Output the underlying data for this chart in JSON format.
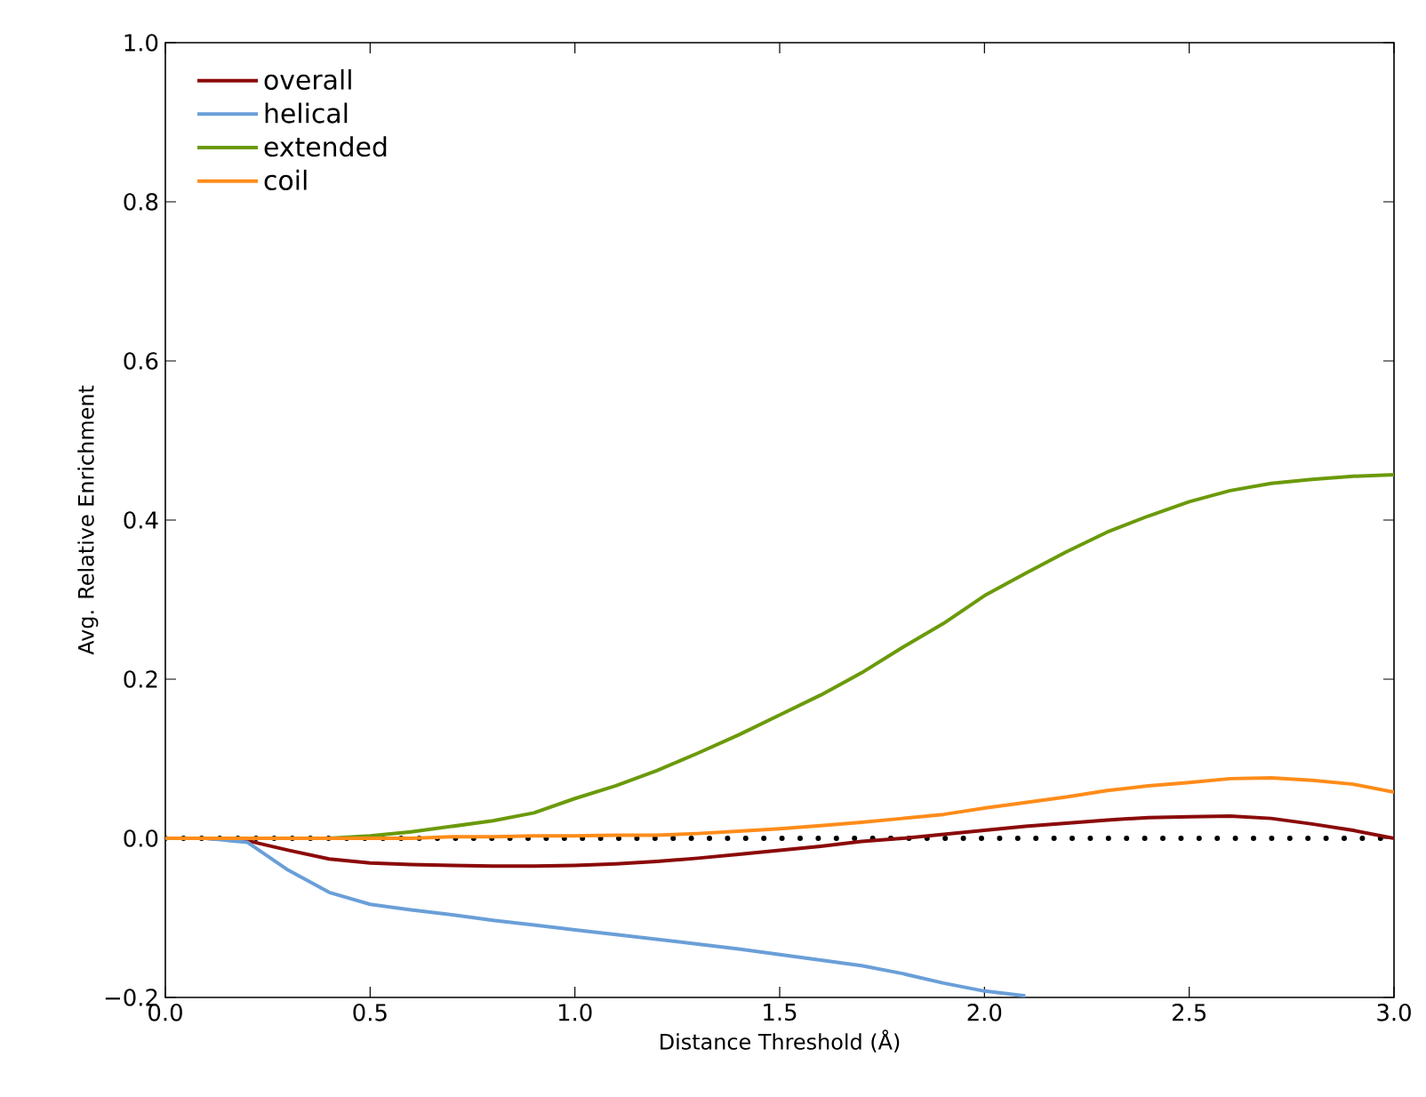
{
  "chart_data": {
    "type": "line",
    "xlabel": "Distance Threshold (Å)",
    "ylabel": "Avg. Relative Enrichment",
    "x": [
      0.0,
      0.1,
      0.2,
      0.3,
      0.4,
      0.5,
      0.6,
      0.7,
      0.8,
      0.9,
      1.0,
      1.1,
      1.2,
      1.3,
      1.4,
      1.5,
      1.6,
      1.7,
      1.8,
      1.9,
      2.0,
      2.1,
      2.2,
      2.3,
      2.4,
      2.5,
      2.6,
      2.7,
      2.8,
      2.9,
      3.0
    ],
    "series": [
      {
        "name": "overall",
        "color": "#8b0a0a",
        "values": [
          0,
          0,
          -0.003,
          -0.015,
          -0.026,
          -0.031,
          -0.033,
          -0.034,
          -0.035,
          -0.035,
          -0.034,
          -0.032,
          -0.029,
          -0.025,
          -0.02,
          -0.015,
          -0.01,
          -0.004,
          0.0,
          0.005,
          0.01,
          0.015,
          0.019,
          0.023,
          0.026,
          0.027,
          0.028,
          0.025,
          0.018,
          0.01,
          0.0
        ]
      },
      {
        "name": "helical",
        "color": "#6a9fd8",
        "values": [
          0,
          0,
          -0.005,
          -0.04,
          -0.068,
          -0.083,
          -0.09,
          -0.096,
          -0.103,
          -0.109,
          -0.115,
          -0.121,
          -0.127,
          -0.133,
          -0.139,
          -0.146,
          -0.153,
          -0.16,
          -0.17,
          -0.182,
          -0.192,
          -0.198,
          null,
          null,
          null,
          null,
          null,
          null,
          null,
          null,
          null
        ]
      },
      {
        "name": "extended",
        "color": "#6b9a0a",
        "values": [
          null,
          null,
          null,
          0,
          0,
          0.003,
          0.008,
          0.015,
          0.022,
          0.032,
          0.05,
          0.066,
          0.085,
          0.107,
          0.13,
          0.155,
          0.18,
          0.208,
          0.24,
          0.27,
          0.305,
          0.333,
          0.36,
          0.385,
          0.405,
          0.423,
          0.437,
          0.446,
          0.451,
          0.455,
          0.457
        ]
      },
      {
        "name": "coil",
        "color": "#ff8c1a",
        "values": [
          0,
          0,
          0,
          0,
          0,
          0,
          0,
          0.002,
          0.002,
          0.003,
          0.003,
          0.004,
          0.004,
          0.006,
          0.009,
          0.012,
          0.016,
          0.02,
          0.025,
          0.03,
          0.038,
          0.045,
          0.052,
          0.06,
          0.066,
          0.07,
          0.075,
          0.076,
          0.073,
          0.068,
          0.058
        ]
      }
    ],
    "ref_lines": [
      {
        "axis": "y",
        "value": 0,
        "color": "#000000",
        "line_style": "dotted"
      }
    ],
    "xlim": [
      0,
      3
    ],
    "ylim": [
      -0.2,
      1.0
    ],
    "xticks": [
      {
        "value": 0,
        "label": "0.0"
      },
      {
        "value": 0.5,
        "label": "0.5"
      },
      {
        "value": 1,
        "label": "1.0"
      },
      {
        "value": 1.5,
        "label": "1.5"
      },
      {
        "value": 2,
        "label": "2.0"
      },
      {
        "value": 2.5,
        "label": "2.5"
      },
      {
        "value": 3,
        "label": "3.0"
      }
    ],
    "yticks": [
      {
        "value": -0.2,
        "label": "−0.2"
      },
      {
        "value": 0,
        "label": "0.0"
      },
      {
        "value": 0.2,
        "label": "0.2"
      },
      {
        "value": 0.4,
        "label": "0.4"
      },
      {
        "value": 0.6,
        "label": "0.6"
      },
      {
        "value": 0.8,
        "label": "0.8"
      },
      {
        "value": 1.0,
        "label": "1.0"
      }
    ],
    "legend": "top left",
    "marker": "none"
  }
}
